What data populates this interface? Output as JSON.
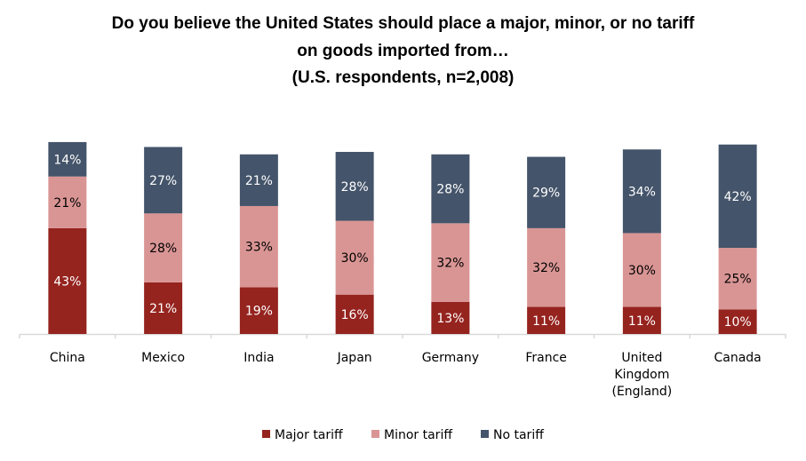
{
  "chart_data": {
    "type": "bar",
    "stacked": true,
    "title": [
      "Do you believe the United States should place a major, minor, or no tariff",
      "on goods imported from…",
      "(U.S. respondents, n=2,008)"
    ],
    "xlabel": "",
    "ylabel": "",
    "categories": [
      [
        "China"
      ],
      [
        "Mexico"
      ],
      [
        "India"
      ],
      [
        "Japan"
      ],
      [
        "Germany"
      ],
      [
        "France"
      ],
      [
        "United",
        "Kingdom",
        "(England)"
      ],
      [
        "Canada"
      ]
    ],
    "series": [
      {
        "name": "Major tariff",
        "color": "#95231E",
        "label_color": "#FFFFFF",
        "values": [
          43,
          21,
          19,
          16,
          13,
          11,
          11,
          10
        ]
      },
      {
        "name": "Minor tariff",
        "color": "#D99594",
        "label_color": "#000000",
        "values": [
          21,
          28,
          33,
          30,
          32,
          32,
          30,
          25
        ]
      },
      {
        "name": "No tariff",
        "color": "#44546A",
        "label_color": "#FFFFFF",
        "values": [
          14,
          27,
          21,
          28,
          28,
          29,
          34,
          42
        ]
      }
    ],
    "value_suffix": "%",
    "legend_position": "bottom",
    "grid": false
  }
}
